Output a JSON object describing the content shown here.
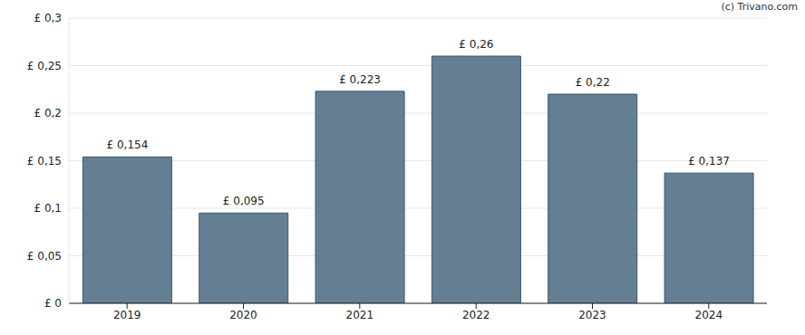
{
  "chart_data": {
    "type": "bar",
    "annotations": [
      "(c) Trivano.com"
    ],
    "categories": [
      "2019",
      "2020",
      "2021",
      "2022",
      "2023",
      "2024"
    ],
    "values": [
      0.154,
      0.095,
      0.223,
      0.26,
      0.22,
      0.137
    ],
    "value_labels": [
      "£ 0,154",
      "£ 0,095",
      "£ 0,223",
      "£ 0,26",
      "£ 0,22",
      "£ 0,137"
    ],
    "color": "#647f94",
    "ylim": [
      0,
      0.3
    ],
    "yticks": [
      {
        "value": 0,
        "label": "£ 0"
      },
      {
        "value": 0.05,
        "label": "£ 0,05"
      },
      {
        "value": 0.1,
        "label": "£ 0,1"
      },
      {
        "value": 0.15,
        "label": "£ 0,15"
      },
      {
        "value": 0.2,
        "label": "£ 0,2"
      },
      {
        "value": 0.25,
        "label": "£ 0,25"
      },
      {
        "value": 0.3,
        "label": "£ 0,3"
      }
    ],
    "grid": true,
    "data_labels": true
  }
}
